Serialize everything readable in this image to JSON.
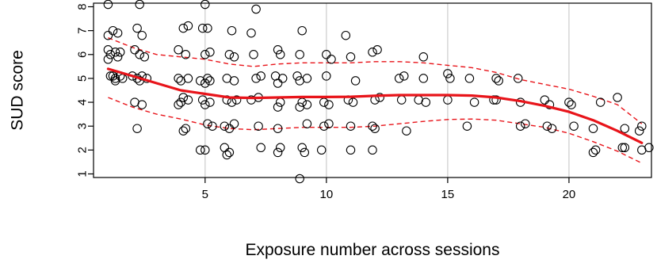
{
  "chart_data": {
    "type": "scatter",
    "title": "",
    "xlabel": "Exposure number across sessions",
    "ylabel": "SUD score",
    "xlim": [
      0.4,
      23.4
    ],
    "ylim": [
      0.85,
      8.15
    ],
    "xticks": [
      5,
      10,
      15,
      20
    ],
    "yticks": [
      1,
      2,
      3,
      4,
      5,
      6,
      7,
      8
    ],
    "grid": true,
    "colors": {
      "points": "#000000",
      "fit": "#e8141a",
      "band": "#e8141a",
      "grid": "#d3d3d3"
    },
    "points": [
      [
        1.0,
        8.1
      ],
      [
        1.0,
        6.8
      ],
      [
        1.2,
        7.0
      ],
      [
        1.4,
        6.9
      ],
      [
        1.0,
        6.2
      ],
      [
        1.1,
        6.0
      ],
      [
        1.3,
        6.1
      ],
      [
        1.5,
        6.1
      ],
      [
        1.0,
        5.8
      ],
      [
        1.4,
        5.9
      ],
      [
        1.1,
        5.1
      ],
      [
        1.2,
        5.1
      ],
      [
        1.3,
        5.0
      ],
      [
        1.5,
        5.1
      ],
      [
        1.3,
        4.9
      ],
      [
        1.6,
        5.0
      ],
      [
        2.3,
        8.1
      ],
      [
        2.2,
        7.1
      ],
      [
        2.4,
        6.8
      ],
      [
        2.1,
        6.2
      ],
      [
        2.3,
        6.0
      ],
      [
        2.5,
        5.9
      ],
      [
        2.0,
        5.1
      ],
      [
        2.2,
        5.0
      ],
      [
        2.3,
        4.9
      ],
      [
        2.4,
        5.1
      ],
      [
        2.6,
        5.0
      ],
      [
        2.1,
        4.0
      ],
      [
        2.4,
        3.9
      ],
      [
        2.2,
        2.9
      ],
      [
        4.1,
        7.1
      ],
      [
        4.3,
        7.2
      ],
      [
        3.9,
        6.2
      ],
      [
        4.2,
        6.0
      ],
      [
        3.9,
        5.0
      ],
      [
        4.0,
        4.9
      ],
      [
        4.3,
        5.0
      ],
      [
        4.1,
        4.2
      ],
      [
        4.3,
        4.1
      ],
      [
        4.0,
        4.0
      ],
      [
        3.9,
        3.9
      ],
      [
        4.1,
        2.8
      ],
      [
        4.2,
        2.9
      ],
      [
        5.0,
        8.1
      ],
      [
        4.9,
        7.1
      ],
      [
        5.1,
        7.1
      ],
      [
        5.0,
        6.0
      ],
      [
        5.2,
        6.1
      ],
      [
        4.8,
        4.9
      ],
      [
        5.0,
        4.8
      ],
      [
        5.1,
        5.0
      ],
      [
        5.2,
        4.9
      ],
      [
        4.9,
        4.1
      ],
      [
        5.0,
        3.9
      ],
      [
        5.2,
        4.0
      ],
      [
        5.1,
        3.1
      ],
      [
        5.3,
        3.0
      ],
      [
        4.8,
        2.0
      ],
      [
        5.0,
        2.0
      ],
      [
        6.1,
        7.0
      ],
      [
        6.0,
        6.0
      ],
      [
        6.2,
        5.9
      ],
      [
        5.9,
        5.0
      ],
      [
        6.2,
        4.9
      ],
      [
        5.9,
        4.1
      ],
      [
        6.1,
        4.0
      ],
      [
        6.3,
        4.1
      ],
      [
        5.8,
        3.0
      ],
      [
        6.0,
        2.9
      ],
      [
        6.2,
        3.1
      ],
      [
        5.8,
        2.1
      ],
      [
        6.0,
        1.9
      ],
      [
        5.9,
        1.8
      ],
      [
        7.1,
        7.9
      ],
      [
        6.9,
        6.9
      ],
      [
        7.0,
        6.0
      ],
      [
        7.3,
        5.1
      ],
      [
        7.1,
        5.0
      ],
      [
        6.9,
        4.1
      ],
      [
        7.2,
        4.2
      ],
      [
        7.2,
        3.0
      ],
      [
        7.3,
        2.1
      ],
      [
        8.0,
        6.2
      ],
      [
        8.1,
        6.0
      ],
      [
        7.9,
        5.1
      ],
      [
        8.2,
        5.0
      ],
      [
        8.0,
        4.8
      ],
      [
        8.0,
        3.8
      ],
      [
        8.1,
        4.0
      ],
      [
        8.0,
        2.9
      ],
      [
        8.1,
        2.1
      ],
      [
        8.0,
        1.9
      ],
      [
        9.0,
        7.0
      ],
      [
        8.9,
        6.0
      ],
      [
        9.2,
        5.0
      ],
      [
        8.8,
        5.1
      ],
      [
        8.9,
        4.9
      ],
      [
        9.0,
        4.0
      ],
      [
        9.2,
        3.9
      ],
      [
        8.9,
        3.8
      ],
      [
        9.2,
        3.1
      ],
      [
        9.0,
        2.1
      ],
      [
        9.1,
        1.9
      ],
      [
        8.9,
        0.8
      ],
      [
        10.0,
        6.0
      ],
      [
        10.2,
        5.8
      ],
      [
        10.0,
        5.1
      ],
      [
        9.9,
        4.0
      ],
      [
        10.1,
        3.9
      ],
      [
        9.9,
        3.0
      ],
      [
        10.1,
        3.1
      ],
      [
        9.8,
        2.0
      ],
      [
        10.8,
        6.8
      ],
      [
        11.0,
        5.9
      ],
      [
        11.2,
        4.9
      ],
      [
        10.9,
        4.1
      ],
      [
        11.1,
        4.0
      ],
      [
        11.0,
        3.0
      ],
      [
        11.0,
        2.0
      ],
      [
        11.9,
        6.1
      ],
      [
        12.1,
        6.2
      ],
      [
        12.0,
        4.1
      ],
      [
        12.2,
        4.2
      ],
      [
        11.9,
        3.0
      ],
      [
        12.0,
        2.9
      ],
      [
        11.9,
        2.0
      ],
      [
        13.0,
        5.0
      ],
      [
        13.2,
        5.1
      ],
      [
        13.1,
        4.1
      ],
      [
        13.3,
        2.8
      ],
      [
        14.0,
        5.9
      ],
      [
        14.0,
        5.0
      ],
      [
        13.8,
        4.1
      ],
      [
        14.1,
        4.0
      ],
      [
        15.0,
        5.2
      ],
      [
        15.1,
        5.0
      ],
      [
        15.0,
        4.1
      ],
      [
        15.9,
        5.0
      ],
      [
        16.1,
        4.0
      ],
      [
        15.8,
        3.0
      ],
      [
        17.0,
        5.0
      ],
      [
        17.1,
        4.9
      ],
      [
        17.0,
        4.1
      ],
      [
        16.9,
        4.1
      ],
      [
        17.9,
        5.0
      ],
      [
        18.0,
        4.0
      ],
      [
        18.0,
        3.0
      ],
      [
        18.2,
        3.1
      ],
      [
        19.0,
        4.1
      ],
      [
        19.2,
        3.9
      ],
      [
        19.1,
        3.0
      ],
      [
        19.3,
        2.9
      ],
      [
        20.0,
        4.0
      ],
      [
        20.1,
        3.9
      ],
      [
        20.2,
        3.0
      ],
      [
        21.0,
        2.9
      ],
      [
        21.1,
        2.0
      ],
      [
        21.0,
        1.9
      ],
      [
        21.3,
        4.0
      ],
      [
        22.0,
        4.2
      ],
      [
        22.3,
        2.9
      ],
      [
        22.2,
        2.1
      ],
      [
        22.3,
        2.1
      ],
      [
        22.9,
        2.8
      ],
      [
        23.0,
        2.0
      ],
      [
        23.0,
        3.0
      ],
      [
        23.3,
        2.1
      ]
    ],
    "fit_line": {
      "x": [
        1,
        2,
        3,
        4,
        5,
        6,
        7,
        8,
        9,
        10,
        11,
        12,
        13,
        14,
        15,
        16,
        17,
        18,
        19,
        20,
        21,
        22,
        23
      ],
      "y": [
        5.4,
        5.1,
        4.8,
        4.5,
        4.35,
        4.2,
        4.18,
        4.2,
        4.22,
        4.22,
        4.23,
        4.27,
        4.3,
        4.3,
        4.3,
        4.28,
        4.2,
        4.05,
        3.85,
        3.6,
        3.25,
        2.8,
        2.3
      ]
    },
    "band_upper": {
      "x": [
        1,
        2,
        3,
        4,
        5,
        6,
        7,
        8,
        9,
        10,
        11,
        12,
        13,
        14,
        15,
        16,
        17,
        18,
        19,
        20,
        21,
        22,
        23
      ],
      "y": [
        6.7,
        6.3,
        6.0,
        5.9,
        5.8,
        5.6,
        5.5,
        5.6,
        5.65,
        5.65,
        5.65,
        5.7,
        5.7,
        5.65,
        5.55,
        5.45,
        5.25,
        4.95,
        4.75,
        4.55,
        4.25,
        3.9,
        3.1
      ]
    },
    "band_lower": {
      "x": [
        1,
        2,
        3,
        4,
        5,
        6,
        7,
        8,
        9,
        10,
        11,
        12,
        13,
        14,
        15,
        16,
        17,
        18,
        19,
        20,
        21,
        22,
        23
      ],
      "y": [
        4.2,
        3.8,
        3.5,
        3.3,
        3.05,
        2.9,
        2.85,
        2.9,
        2.95,
        2.95,
        2.95,
        3.0,
        3.1,
        3.2,
        3.28,
        3.3,
        3.25,
        3.1,
        2.95,
        2.7,
        2.35,
        1.95,
        1.45
      ]
    }
  }
}
